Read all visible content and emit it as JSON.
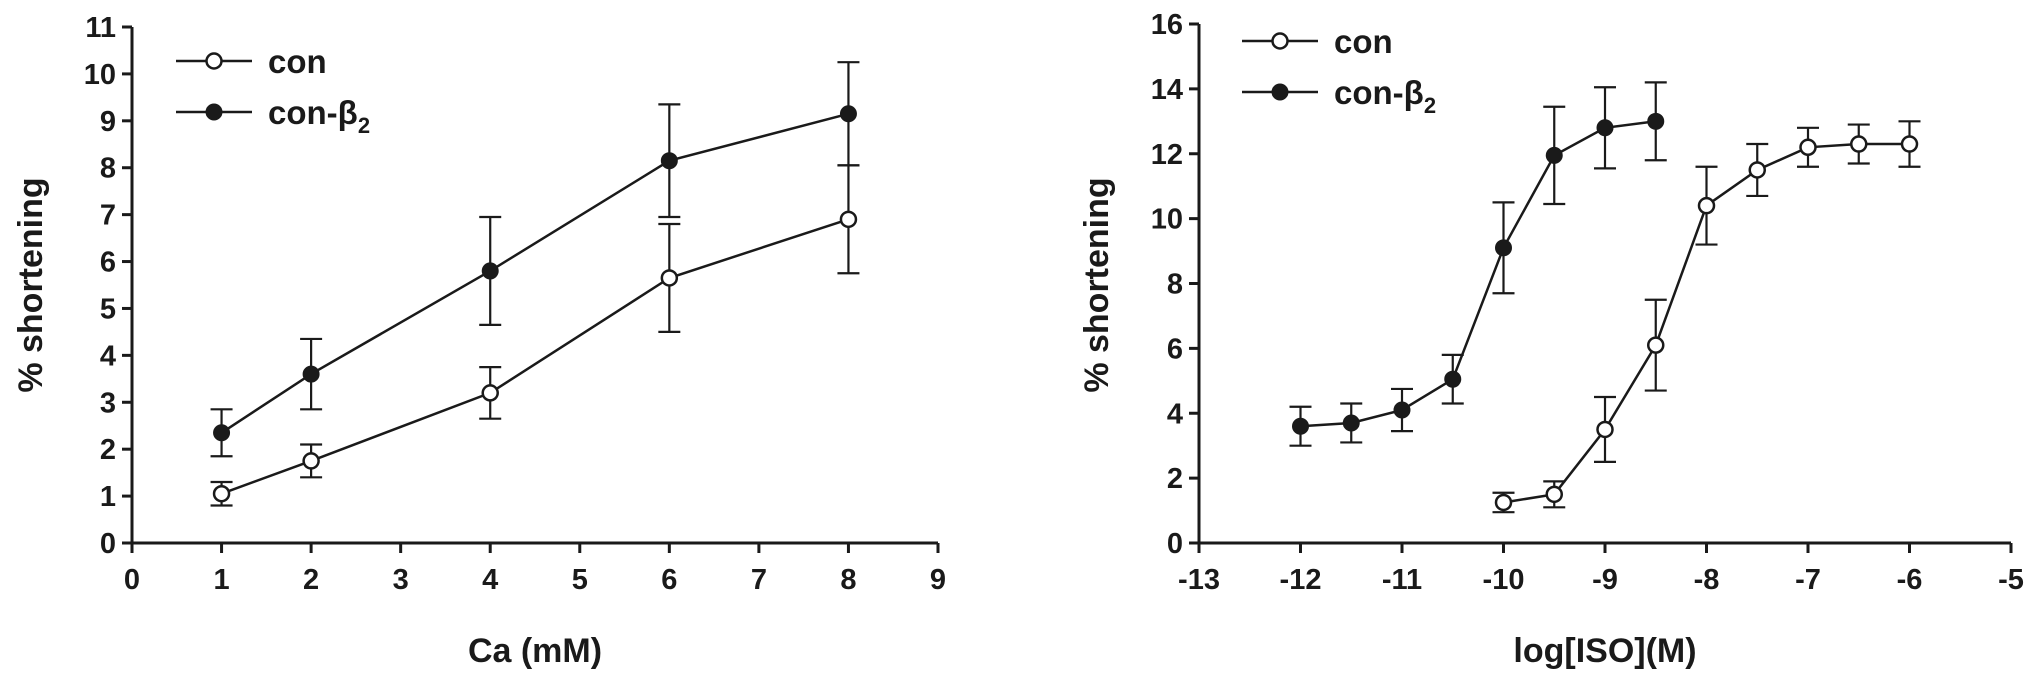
{
  "chart_data": [
    {
      "type": "line",
      "title": "",
      "xlabel": "Ca (mM)",
      "ylabel": "% shortening",
      "xlim": [
        0,
        9
      ],
      "ylim": [
        0,
        11
      ],
      "x_ticks": [
        "0",
        "1",
        "2",
        "3",
        "4",
        "5",
        "6",
        "7",
        "8",
        "9"
      ],
      "y_ticks": [
        "0",
        "1",
        "2",
        "3",
        "4",
        "5",
        "6",
        "7",
        "8",
        "9",
        "10",
        "11"
      ],
      "legend_position": "top-left",
      "series": [
        {
          "name": "con",
          "marker": "open-circle",
          "x": [
            1,
            2,
            4,
            6,
            8
          ],
          "y": [
            1.05,
            1.75,
            3.2,
            5.65,
            6.9
          ],
          "err": [
            0.25,
            0.35,
            0.55,
            1.15,
            1.15
          ]
        },
        {
          "name": "con-β",
          "name_subscript": "2",
          "marker": "filled-circle",
          "x": [
            1,
            2,
            4,
            6,
            8
          ],
          "y": [
            2.35,
            3.6,
            5.8,
            8.15,
            9.15
          ],
          "err": [
            0.5,
            0.75,
            1.15,
            1.2,
            1.1
          ]
        }
      ]
    },
    {
      "type": "line",
      "title": "",
      "xlabel": "log[ISO](M)",
      "ylabel": "% shortening",
      "xlim": [
        -13,
        -5
      ],
      "ylim": [
        0,
        16
      ],
      "x_ticks": [
        "-13",
        "-12",
        "-11",
        "-10",
        "-9",
        "-8",
        "-7",
        "-6",
        "-5"
      ],
      "y_ticks": [
        "0",
        "2",
        "4",
        "6",
        "8",
        "10",
        "12",
        "14",
        "16"
      ],
      "legend_position": "top-left",
      "series": [
        {
          "name": "con",
          "marker": "open-circle",
          "x": [
            -10,
            -9.5,
            -9,
            -8.5,
            -8,
            -7.5,
            -7,
            -6.5,
            -6
          ],
          "y": [
            1.25,
            1.5,
            3.5,
            6.1,
            10.4,
            11.5,
            12.2,
            12.3,
            12.3
          ],
          "err": [
            0.3,
            0.4,
            1.0,
            1.4,
            1.2,
            0.8,
            0.6,
            0.6,
            0.7
          ]
        },
        {
          "name": "con-β",
          "name_subscript": "2",
          "marker": "filled-circle",
          "x": [
            -12,
            -11.5,
            -11,
            -10.5,
            -10,
            -9.5,
            -9,
            -8.5
          ],
          "y": [
            3.6,
            3.7,
            4.1,
            5.05,
            9.1,
            11.95,
            12.8,
            13.0
          ],
          "err": [
            0.6,
            0.6,
            0.65,
            0.75,
            1.4,
            1.5,
            1.25,
            1.2
          ]
        }
      ]
    }
  ]
}
